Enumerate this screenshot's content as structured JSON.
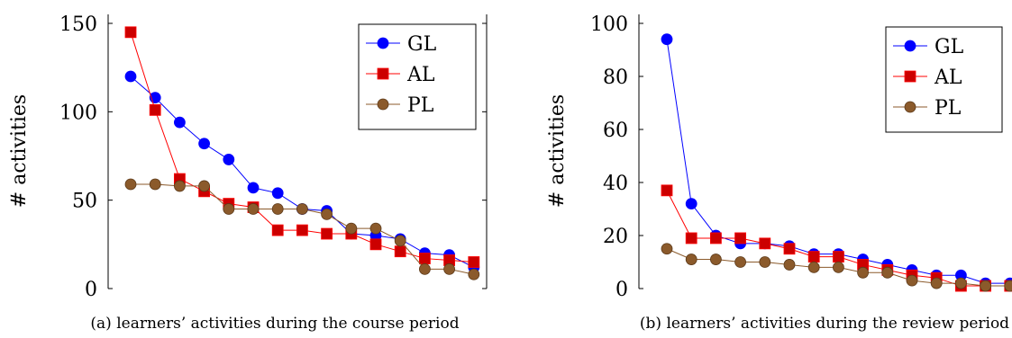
{
  "colors": {
    "GL": "#0000ff",
    "AL": "#ff0000",
    "PL": "#8b5a2b",
    "AL_marker": "#cc0000",
    "PL_marker": "#8b5a2b"
  },
  "chart_data": [
    {
      "type": "line",
      "caption": "(a) learners’ activities during the course period",
      "xlabel": "",
      "ylabel": "# activities",
      "ylim": [
        0,
        150
      ],
      "yticks": [
        0,
        50,
        100,
        150
      ],
      "grid": false,
      "legend_position": "top-right",
      "x": [
        1,
        2,
        3,
        4,
        5,
        6,
        7,
        8,
        9,
        10,
        11,
        12,
        13,
        14,
        15
      ],
      "series": [
        {
          "name": "GL",
          "marker": "circle",
          "values": [
            120,
            108,
            94,
            82,
            73,
            57,
            54,
            45,
            44,
            31,
            30,
            28,
            20,
            19,
            12
          ]
        },
        {
          "name": "AL",
          "marker": "square",
          "values": [
            145,
            101,
            62,
            55,
            48,
            46,
            33,
            33,
            31,
            31,
            25,
            21,
            17,
            16,
            15
          ]
        },
        {
          "name": "PL",
          "marker": "circle",
          "values": [
            59,
            59,
            58,
            58,
            45,
            45,
            45,
            45,
            42,
            34,
            34,
            27,
            11,
            11,
            8
          ]
        }
      ]
    },
    {
      "type": "line",
      "caption": "(b) learners’ activities during the review period",
      "xlabel": "",
      "ylabel": "# activities",
      "ylim": [
        0,
        100
      ],
      "yticks": [
        0,
        20,
        40,
        60,
        80,
        100
      ],
      "grid": false,
      "legend_position": "top-right",
      "x": [
        1,
        2,
        3,
        4,
        5,
        6,
        7,
        8,
        9,
        10,
        11,
        12,
        13,
        14,
        15
      ],
      "series": [
        {
          "name": "GL",
          "marker": "circle",
          "values": [
            94,
            32,
            20,
            17,
            17,
            16,
            13,
            13,
            11,
            9,
            7,
            5,
            5,
            2,
            2
          ]
        },
        {
          "name": "AL",
          "marker": "square",
          "values": [
            37,
            19,
            19,
            19,
            17,
            15,
            12,
            12,
            9,
            7,
            5,
            4,
            1,
            1,
            1
          ]
        },
        {
          "name": "PL",
          "marker": "circle",
          "values": [
            15,
            11,
            11,
            10,
            10,
            9,
            8,
            8,
            6,
            6,
            3,
            2,
            2,
            1,
            1
          ]
        }
      ]
    }
  ]
}
